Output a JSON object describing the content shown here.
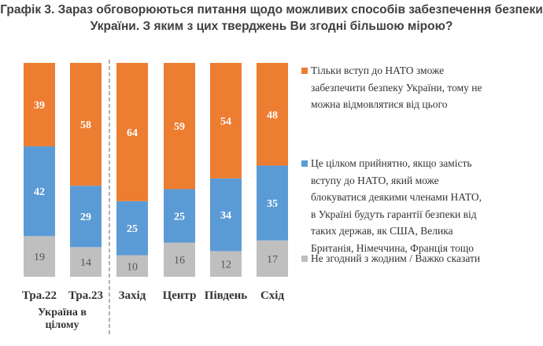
{
  "chart_data": {
    "type": "bar",
    "stacked": "100%",
    "title_lines": [
      "Графік 3. Зараз обговорюються питання щодо можливих способів забезпечення безпеки",
      "України. З яким з цих тверджень Ви згодні більшою мірою?"
    ],
    "categories": [
      "Тра.22",
      "Тра.23",
      "Захід",
      "Центр",
      "Південь",
      "Схід"
    ],
    "group_label": [
      "Україна в",
      "цілому"
    ],
    "series": [
      {
        "name": "Не згодний з жодним / Важко сказати",
        "color": "#bfbfbf",
        "values": [
          19,
          14,
          10,
          16,
          12,
          17
        ]
      },
      {
        "name": "Це цілком прийнятно, якщо замість вступу до НАТО, який може блокуватися деякими членами НАТО, в Україні будуть гарантії безпеки від таких держав, як США, Велика Британія, Німеччина, Франція тощо",
        "color": "#5b9bd5",
        "values": [
          42,
          29,
          25,
          25,
          34,
          35
        ]
      },
      {
        "name": "Тільки вступ до НАТО зможе забезпечити безпеку України, тому не можна відмовлятися від цього",
        "color": "#ed7d31",
        "values": [
          39,
          58,
          64,
          59,
          54,
          48
        ]
      }
    ],
    "ylim": [
      0,
      100
    ],
    "grid": false,
    "legend": "right"
  },
  "legend": [
    {
      "color": "#ed7d31",
      "lines": [
        "Тільки вступ до НАТО зможе",
        "забезпечити безпеку України, тому не",
        "можна відмовлятися від цього"
      ]
    },
    {
      "color": "#5b9bd5",
      "lines": [
        "Це цілком прийнятно, якщо замість",
        "вступу до НАТО, який може",
        "блокуватися деякими членами НАТО,",
        "в Україні будуть гарантії безпеки від",
        "таких держав, як США, Велика",
        "Британія, Німеччина, Франція тощо"
      ]
    },
    {
      "color": "#bfbfbf",
      "lines": [
        "Не згодний з жодним / Важко сказати"
      ]
    }
  ]
}
